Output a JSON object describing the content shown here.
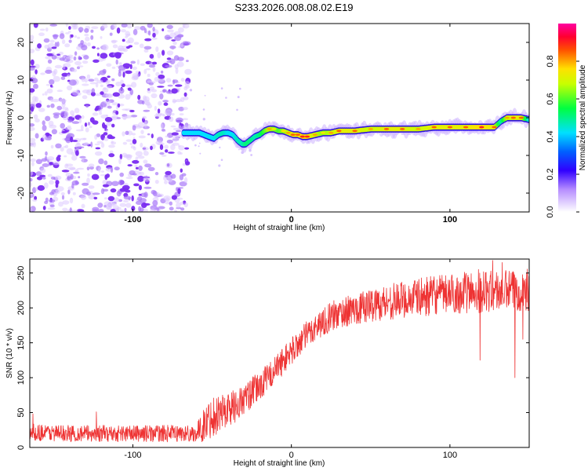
{
  "title": "S233.2026.008.08.02.E19",
  "chart_data": [
    {
      "type": "heatmap",
      "xlabel": "Height of straight line (km)",
      "ylabel": "Frequency (Hz)",
      "xlim": [
        -165,
        150
      ],
      "ylim": [
        -25,
        25
      ],
      "xticks": [
        -100,
        0,
        100
      ],
      "yticks": [
        -20,
        -10,
        0,
        10,
        20
      ],
      "colorbar": {
        "label": "Normalized spectral amplitude",
        "ticks": [
          0.0,
          0.2,
          0.4,
          0.6,
          0.8
        ],
        "range": [
          0,
          1
        ],
        "colors": [
          "#ffffff",
          "#7b00ff",
          "#0000ff",
          "#00ccff",
          "#00ff00",
          "#ffff00",
          "#ff8000",
          "#ff0000",
          "#ff00aa"
        ]
      },
      "noise_region_x": [
        -165,
        -65
      ],
      "ridge": {
        "x": [
          -68,
          -63,
          -58,
          -55,
          -52,
          -49,
          -46,
          -43,
          -40,
          -37,
          -34,
          -31,
          -29,
          -26,
          -23,
          -20,
          -17,
          -14,
          -11,
          -8,
          -5,
          -2,
          1,
          4,
          7,
          10,
          15,
          20,
          25,
          30,
          40,
          50,
          60,
          70,
          80,
          90,
          100,
          110,
          120,
          128,
          132,
          136,
          140,
          145,
          150
        ],
        "y": [
          -4,
          -4,
          -4,
          -4.5,
          -5,
          -5.5,
          -4.5,
          -4,
          -4,
          -4.5,
          -6,
          -7,
          -7,
          -6,
          -5,
          -4.5,
          -3.5,
          -3,
          -3,
          -3.5,
          -3.5,
          -4,
          -4.5,
          -4.5,
          -5,
          -5,
          -4.5,
          -4,
          -4,
          -3.5,
          -3.5,
          -3,
          -3,
          -3,
          -3,
          -2.5,
          -2.5,
          -2.5,
          -2.5,
          -2.5,
          -1,
          0,
          0,
          0,
          -0.5
        ],
        "amplitude": [
          0.35,
          0.4,
          0.45,
          0.45,
          0.5,
          0.5,
          0.55,
          0.55,
          0.5,
          0.5,
          0.55,
          0.55,
          0.6,
          0.6,
          0.55,
          0.6,
          0.7,
          0.8,
          0.75,
          0.7,
          0.75,
          0.8,
          0.85,
          0.85,
          0.9,
          0.9,
          0.8,
          0.75,
          0.8,
          0.85,
          0.85,
          0.8,
          0.85,
          0.85,
          0.8,
          0.85,
          0.85,
          0.85,
          0.9,
          0.85,
          0.55,
          0.8,
          0.85,
          0.85,
          0.5
        ]
      }
    },
    {
      "type": "line",
      "xlabel": "Height of straight line (km)",
      "ylabel": "SNR (10 * v/v)",
      "xlim": [
        -165,
        150
      ],
      "ylim": [
        0,
        270
      ],
      "xticks": [
        -100,
        0,
        100
      ],
      "yticks": [
        0,
        50,
        100,
        150,
        200,
        250
      ],
      "series": [
        {
          "name": "SNR",
          "color": "#ee3333",
          "x_trend": [
            -165,
            -140,
            -110,
            -80,
            -60,
            -55,
            -50,
            -45,
            -40,
            -35,
            -30,
            -25,
            -20,
            -15,
            -10,
            -5,
            0,
            5,
            10,
            15,
            20,
            25,
            30,
            40,
            50,
            60,
            70,
            80,
            90,
            100,
            110,
            120,
            130,
            140,
            150
          ],
          "y_trend": [
            22,
            20,
            20,
            20,
            20,
            32,
            45,
            50,
            55,
            60,
            68,
            78,
            88,
            100,
            112,
            125,
            138,
            150,
            162,
            172,
            180,
            187,
            192,
            198,
            204,
            208,
            212,
            215,
            218,
            220,
            222,
            223,
            224,
            225,
            226
          ],
          "noise_amplitude": [
            12,
            12,
            12,
            12,
            12,
            25,
            30,
            28,
            26,
            24,
            22,
            22,
            22,
            20,
            20,
            20,
            20,
            20,
            20,
            20,
            20,
            22,
            22,
            22,
            24,
            26,
            26,
            28,
            28,
            28,
            30,
            30,
            30,
            30,
            30
          ],
          "spikes": [
            [
              118,
              255
            ],
            [
              127,
              268
            ],
            [
              133,
              265
            ],
            [
              119,
              125
            ],
            [
              141,
              100
            ],
            [
              146,
              155
            ],
            [
              -163,
              48
            ],
            [
              -123,
              51
            ]
          ]
        }
      ]
    }
  ]
}
